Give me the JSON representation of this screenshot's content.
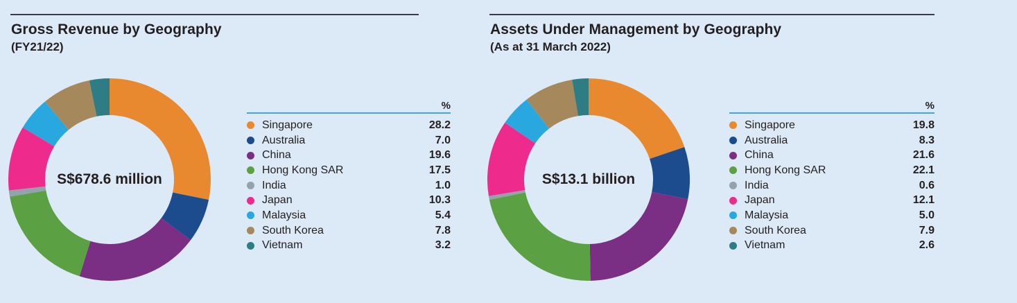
{
  "page": {
    "background": "#dce9f6",
    "text_color": "#231f20",
    "rule_color": "#3c3c46",
    "legend_rule_color": "#45a5d6"
  },
  "chart_data": [
    {
      "type": "pie",
      "subtype": "donut",
      "title": "Gross Revenue by Geography",
      "subtitle": "(FY21/22)",
      "center_label": "S$678.6 million",
      "unit_header": "%",
      "start_angle": "top",
      "direction": "clockwise",
      "legend_position": "right",
      "categories": [
        "Singapore",
        "Australia",
        "China",
        "Hong Kong SAR",
        "India",
        "Japan",
        "Malaysia",
        "South Korea",
        "Vietnam"
      ],
      "values": [
        28.2,
        7.0,
        19.6,
        17.5,
        1.0,
        10.3,
        5.4,
        7.8,
        3.2
      ],
      "colors": [
        "#e8882f",
        "#1c4b8e",
        "#7a2f84",
        "#5ba043",
        "#93a2ab",
        "#ee2b8c",
        "#29a8e0",
        "#a5895c",
        "#2e7d85"
      ]
    },
    {
      "type": "pie",
      "subtype": "donut",
      "title": "Assets Under Management by Geography",
      "subtitle": "(As at 31 March 2022)",
      "center_label": "S$13.1 billion",
      "unit_header": "%",
      "start_angle": "top",
      "direction": "clockwise",
      "legend_position": "right",
      "categories": [
        "Singapore",
        "Australia",
        "China",
        "Hong Kong SAR",
        "India",
        "Japan",
        "Malaysia",
        "South Korea",
        "Vietnam"
      ],
      "values": [
        19.8,
        8.3,
        21.6,
        22.1,
        0.6,
        12.1,
        5.0,
        7.9,
        2.6
      ],
      "colors": [
        "#e8882f",
        "#1c4b8e",
        "#7a2f84",
        "#5ba043",
        "#93a2ab",
        "#ee2b8c",
        "#29a8e0",
        "#a5895c",
        "#2e7d85"
      ]
    }
  ]
}
